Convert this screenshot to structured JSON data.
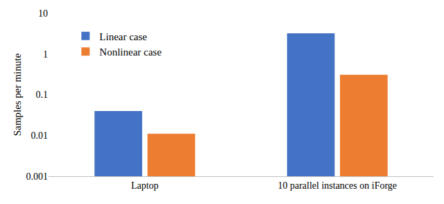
{
  "chart_data": {
    "type": "bar",
    "categories": [
      "Laptop",
      "10 parallel instances on iForge"
    ],
    "series": [
      {
        "name": "Linear case",
        "color": "#4472c4",
        "values": [
          0.04,
          3.2
        ]
      },
      {
        "name": "Nonlinear case",
        "color": "#ed7d31",
        "values": [
          0.011,
          0.31
        ]
      }
    ],
    "y_label": "Samples per minute",
    "log": "y",
    "ylim": [
      0.001,
      10
    ],
    "yticks": [
      0.001,
      0.01,
      0.1,
      1,
      10
    ],
    "grid": false,
    "legend": "upper left"
  }
}
